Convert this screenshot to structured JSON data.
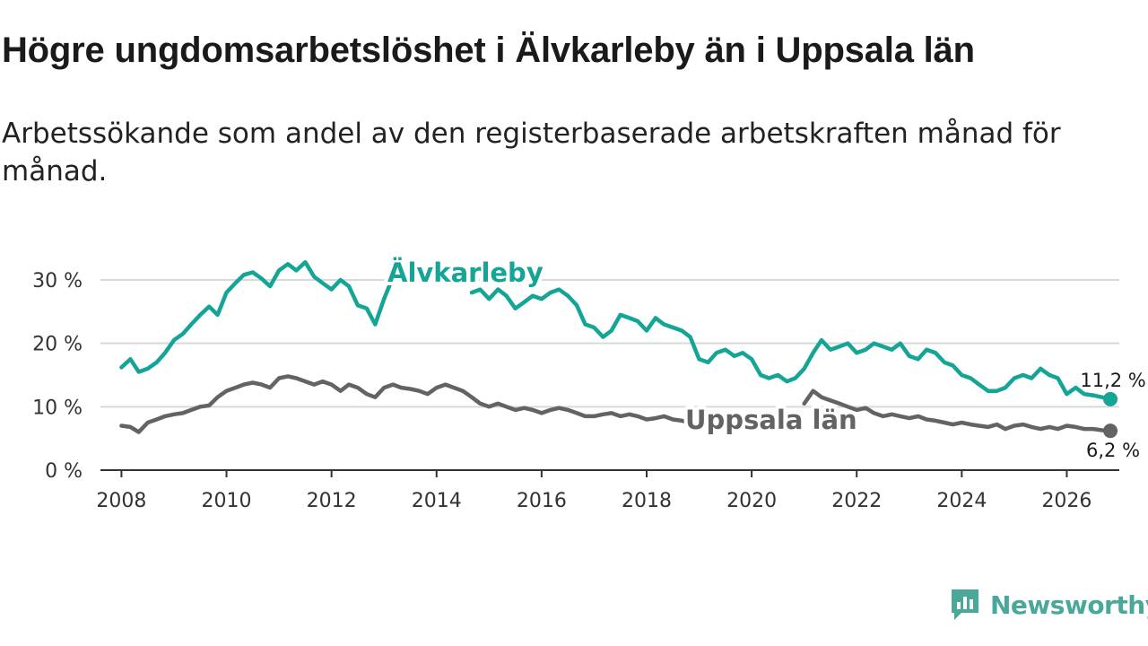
{
  "title": "Högre ungdomsarbetslöshet i Älvkarleby än i Uppsala län",
  "subtitle": "Arbetssökande som andel av den registerbaserade arbetskraften månad för månad.",
  "brand": {
    "name": "Newsworthy",
    "icon": "newsworthy-logo-icon"
  },
  "colors": {
    "alvkarleby": "#14a596",
    "uppsala": "#636363",
    "grid": "#d9d9d9",
    "axis": "#333333",
    "text": "#333333"
  },
  "chart_data": {
    "type": "line",
    "title": "Högre ungdomsarbetslöshet i Älvkarleby än i Uppsala län",
    "xlabel": "",
    "ylabel": "",
    "xlim": [
      2007.6,
      2027.0
    ],
    "ylim": [
      0,
      30
    ],
    "yticks": [
      0,
      10,
      20,
      30
    ],
    "ytick_labels": [
      "0 %",
      "10 %",
      "20 %",
      "30 %"
    ],
    "xticks": [
      2008,
      2010,
      2012,
      2014,
      2016,
      2018,
      2020,
      2022,
      2024,
      2026
    ],
    "xtick_labels": [
      "2008",
      "2010",
      "2012",
      "2014",
      "2016",
      "2018",
      "2020",
      "2022",
      "2024",
      "2026"
    ],
    "grid": true,
    "series": [
      {
        "name": "Älvkarleby",
        "label": "Älvkarleby",
        "end_label": "11,2 %",
        "color": "#14a596",
        "points": [
          [
            2008.0,
            16.2
          ],
          [
            2008.17,
            17.5
          ],
          [
            2008.33,
            15.5
          ],
          [
            2008.5,
            16.0
          ],
          [
            2008.67,
            17.0
          ],
          [
            2008.83,
            18.5
          ],
          [
            2009.0,
            20.5
          ],
          [
            2009.17,
            21.5
          ],
          [
            2009.33,
            23.0
          ],
          [
            2009.5,
            24.5
          ],
          [
            2009.67,
            25.8
          ],
          [
            2009.83,
            24.5
          ],
          [
            2010.0,
            28.0
          ],
          [
            2010.17,
            29.5
          ],
          [
            2010.33,
            30.8
          ],
          [
            2010.5,
            31.2
          ],
          [
            2010.67,
            30.2
          ],
          [
            2010.83,
            29.0
          ],
          [
            2011.0,
            31.5
          ],
          [
            2011.17,
            32.5
          ],
          [
            2011.33,
            31.5
          ],
          [
            2011.5,
            32.8
          ],
          [
            2011.67,
            30.5
          ],
          [
            2011.83,
            29.5
          ],
          [
            2012.0,
            28.5
          ],
          [
            2012.17,
            30.0
          ],
          [
            2012.33,
            29.0
          ],
          [
            2012.5,
            26.0
          ],
          [
            2012.67,
            25.5
          ],
          [
            2012.83,
            23.0
          ],
          [
            2013.0,
            27.0
          ],
          [
            2013.17,
            30.5
          ],
          null,
          [
            2013.5,
            28.5
          ],
          null,
          [
            2014.67,
            28.0
          ],
          [
            2014.83,
            28.5
          ],
          [
            2015.0,
            27.0
          ],
          [
            2015.17,
            28.5
          ],
          [
            2015.33,
            27.5
          ],
          [
            2015.5,
            25.5
          ],
          [
            2015.67,
            26.5
          ],
          [
            2015.83,
            27.5
          ],
          [
            2016.0,
            27.0
          ],
          [
            2016.17,
            28.0
          ],
          [
            2016.33,
            28.5
          ],
          [
            2016.5,
            27.5
          ],
          [
            2016.67,
            26.0
          ],
          [
            2016.83,
            23.0
          ],
          [
            2017.0,
            22.5
          ],
          [
            2017.17,
            21.0
          ],
          [
            2017.33,
            22.0
          ],
          [
            2017.5,
            24.5
          ],
          [
            2017.67,
            24.0
          ],
          [
            2017.83,
            23.5
          ],
          [
            2018.0,
            22.0
          ],
          [
            2018.17,
            24.0
          ],
          [
            2018.33,
            23.0
          ],
          [
            2018.5,
            22.5
          ],
          [
            2018.67,
            22.0
          ],
          [
            2018.83,
            21.0
          ],
          [
            2019.0,
            17.5
          ],
          [
            2019.17,
            17.0
          ],
          [
            2019.33,
            18.5
          ],
          [
            2019.5,
            19.0
          ],
          [
            2019.67,
            18.0
          ],
          [
            2019.83,
            18.5
          ],
          [
            2020.0,
            17.5
          ],
          [
            2020.17,
            15.0
          ],
          [
            2020.33,
            14.5
          ],
          [
            2020.5,
            15.0
          ],
          [
            2020.67,
            14.0
          ],
          [
            2020.83,
            14.5
          ],
          [
            2021.0,
            16.0
          ],
          [
            2021.17,
            18.5
          ],
          [
            2021.33,
            20.5
          ],
          [
            2021.5,
            19.0
          ],
          [
            2021.67,
            19.5
          ],
          [
            2021.83,
            20.0
          ],
          [
            2022.0,
            18.5
          ],
          [
            2022.17,
            19.0
          ],
          [
            2022.33,
            20.0
          ],
          [
            2022.5,
            19.5
          ],
          [
            2022.67,
            19.0
          ],
          [
            2022.83,
            20.0
          ],
          [
            2023.0,
            18.0
          ],
          [
            2023.17,
            17.5
          ],
          [
            2023.33,
            19.0
          ],
          [
            2023.5,
            18.5
          ],
          [
            2023.67,
            17.0
          ],
          [
            2023.83,
            16.5
          ],
          [
            2024.0,
            15.0
          ],
          [
            2024.17,
            14.5
          ],
          [
            2024.33,
            13.5
          ],
          [
            2024.5,
            12.5
          ],
          [
            2024.67,
            12.5
          ],
          [
            2024.83,
            13.0
          ],
          [
            2025.0,
            14.5
          ],
          [
            2025.17,
            15.0
          ],
          [
            2025.33,
            14.5
          ],
          [
            2025.5,
            16.0
          ],
          [
            2025.67,
            15.0
          ],
          [
            2025.83,
            14.5
          ],
          [
            2026.0,
            12.0
          ],
          [
            2026.17,
            13.0
          ],
          [
            2026.33,
            12.0
          ],
          [
            2026.5,
            11.8
          ],
          [
            2026.67,
            11.5
          ],
          [
            2026.83,
            11.2
          ]
        ]
      },
      {
        "name": "Uppsala län",
        "label": "Uppsala län",
        "end_label": "6,2 %",
        "color": "#636363",
        "points": [
          [
            2008.0,
            7.0
          ],
          [
            2008.17,
            6.8
          ],
          [
            2008.33,
            6.0
          ],
          [
            2008.5,
            7.5
          ],
          [
            2008.67,
            8.0
          ],
          [
            2008.83,
            8.5
          ],
          [
            2009.0,
            8.8
          ],
          [
            2009.17,
            9.0
          ],
          [
            2009.33,
            9.5
          ],
          [
            2009.5,
            10.0
          ],
          [
            2009.67,
            10.2
          ],
          [
            2009.83,
            11.5
          ],
          [
            2010.0,
            12.5
          ],
          [
            2010.17,
            13.0
          ],
          [
            2010.33,
            13.5
          ],
          [
            2010.5,
            13.8
          ],
          [
            2010.67,
            13.5
          ],
          [
            2010.83,
            13.0
          ],
          [
            2011.0,
            14.5
          ],
          [
            2011.17,
            14.8
          ],
          [
            2011.33,
            14.5
          ],
          [
            2011.5,
            14.0
          ],
          [
            2011.67,
            13.5
          ],
          [
            2011.83,
            14.0
          ],
          [
            2012.0,
            13.5
          ],
          [
            2012.17,
            12.5
          ],
          [
            2012.33,
            13.5
          ],
          [
            2012.5,
            13.0
          ],
          [
            2012.67,
            12.0
          ],
          [
            2012.83,
            11.5
          ],
          [
            2013.0,
            13.0
          ],
          [
            2013.17,
            13.5
          ],
          [
            2013.33,
            13.0
          ],
          [
            2013.5,
            12.8
          ],
          [
            2013.67,
            12.5
          ],
          [
            2013.83,
            12.0
          ],
          [
            2014.0,
            13.0
          ],
          [
            2014.17,
            13.5
          ],
          [
            2014.33,
            13.0
          ],
          [
            2014.5,
            12.5
          ],
          [
            2014.67,
            11.5
          ],
          [
            2014.83,
            10.5
          ],
          [
            2015.0,
            10.0
          ],
          [
            2015.17,
            10.5
          ],
          [
            2015.33,
            10.0
          ],
          [
            2015.5,
            9.5
          ],
          [
            2015.67,
            9.8
          ],
          [
            2015.83,
            9.5
          ],
          [
            2016.0,
            9.0
          ],
          [
            2016.17,
            9.5
          ],
          [
            2016.33,
            9.8
          ],
          [
            2016.5,
            9.5
          ],
          [
            2016.67,
            9.0
          ],
          [
            2016.83,
            8.5
          ],
          [
            2017.0,
            8.5
          ],
          [
            2017.17,
            8.8
          ],
          [
            2017.33,
            9.0
          ],
          [
            2017.5,
            8.5
          ],
          [
            2017.67,
            8.8
          ],
          [
            2017.83,
            8.5
          ],
          [
            2018.0,
            8.0
          ],
          [
            2018.17,
            8.2
          ],
          [
            2018.33,
            8.5
          ],
          [
            2018.5,
            8.0
          ],
          [
            2018.67,
            7.8
          ],
          [
            2018.83,
            7.5
          ],
          [
            2019.0,
            7.5
          ],
          [
            2019.17,
            7.2
          ],
          [
            2019.33,
            7.8
          ],
          null,
          [
            2021.0,
            10.5
          ],
          [
            2021.17,
            12.5
          ],
          [
            2021.33,
            11.5
          ],
          [
            2021.5,
            11.0
          ],
          [
            2021.67,
            10.5
          ],
          [
            2021.83,
            10.0
          ],
          [
            2022.0,
            9.5
          ],
          [
            2022.17,
            9.8
          ],
          [
            2022.33,
            9.0
          ],
          [
            2022.5,
            8.5
          ],
          [
            2022.67,
            8.8
          ],
          [
            2022.83,
            8.5
          ],
          [
            2023.0,
            8.2
          ],
          [
            2023.17,
            8.5
          ],
          [
            2023.33,
            8.0
          ],
          [
            2023.5,
            7.8
          ],
          [
            2023.67,
            7.5
          ],
          [
            2023.83,
            7.2
          ],
          [
            2024.0,
            7.5
          ],
          [
            2024.17,
            7.2
          ],
          [
            2024.33,
            7.0
          ],
          [
            2024.5,
            6.8
          ],
          [
            2024.67,
            7.2
          ],
          [
            2024.83,
            6.5
          ],
          [
            2025.0,
            7.0
          ],
          [
            2025.17,
            7.2
          ],
          [
            2025.33,
            6.8
          ],
          [
            2025.5,
            6.5
          ],
          [
            2025.67,
            6.8
          ],
          [
            2025.83,
            6.5
          ],
          [
            2026.0,
            7.0
          ],
          [
            2026.17,
            6.8
          ],
          [
            2026.33,
            6.5
          ],
          [
            2026.5,
            6.5
          ],
          [
            2026.67,
            6.3
          ],
          [
            2026.83,
            6.2
          ]
        ]
      }
    ]
  }
}
